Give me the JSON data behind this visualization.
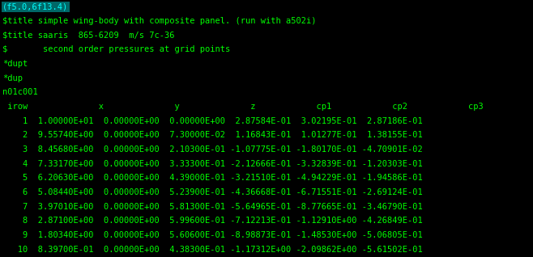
{
  "background_color": "#000000",
  "text_color": "#00ff00",
  "highlight_color": "#00ffff",
  "highlight_bg": "#006868",
  "font_size": 7.5,
  "figsize": [
    6.58,
    3.18
  ],
  "dpi": 100,
  "lines": [
    {
      "text": "(f5.0,6f13.4)",
      "highlight": true
    },
    {
      "text": "$title simple wing-body with composite panel. (run with a502i)",
      "highlight": false
    },
    {
      "text": "$title saaris  865-6209  m/s 7c-36",
      "highlight": false
    },
    {
      "text": "$       second order pressures at grid points",
      "highlight": false
    },
    {
      "text": "*dupt",
      "highlight": false
    },
    {
      "text": "*dup",
      "highlight": false
    },
    {
      "text": "n01c001",
      "highlight": false
    },
    {
      "text": " irow              x              y              z            cp1            cp2            cp3",
      "highlight": false
    },
    {
      "text": "    1  1.00000E+01  0.00000E+00  0.00000E+00  2.87584E-01  3.02195E-01  2.87186E-01",
      "highlight": false
    },
    {
      "text": "    2  9.55740E+00  0.00000E+00  7.30000E-02  1.16843E-01  1.01277E-01  1.38155E-01",
      "highlight": false
    },
    {
      "text": "    3  8.45680E+00  0.00000E+00  2.10300E-01 -1.07775E-01 -1.80170E-01 -4.70901E-02",
      "highlight": false
    },
    {
      "text": "    4  7.33170E+00  0.00000E+00  3.33300E-01 -2.12666E-01 -3.32839E-01 -1.20303E-01",
      "highlight": false
    },
    {
      "text": "    5  6.20630E+00  0.00000E+00  4.39000E-01 -3.21510E-01 -4.94229E-01 -1.94586E-01",
      "highlight": false
    },
    {
      "text": "    6  5.08440E+00  0.00000E+00  5.23900E-01 -4.36668E-01 -6.71551E-01 -2.69124E-01",
      "highlight": false
    },
    {
      "text": "    7  3.97010E+00  0.00000E+00  5.81300E-01 -5.64965E-01 -8.77665E-01 -3.46790E-01",
      "highlight": false
    },
    {
      "text": "    8  2.87100E+00  0.00000E+00  5.99600E-01 -7.12213E-01 -1.12910E+00 -4.26849E-01",
      "highlight": false
    },
    {
      "text": "    9  1.80340E+00  0.00000E+00  5.60600E-01 -8.98873E-01 -1.48530E+00 -5.06805E-01",
      "highlight": false
    },
    {
      "text": "   10  8.39700E-01  0.00000E+00  4.38300E-01 -1.17312E+00 -2.09862E+00 -5.61502E-01",
      "highlight": false
    }
  ]
}
